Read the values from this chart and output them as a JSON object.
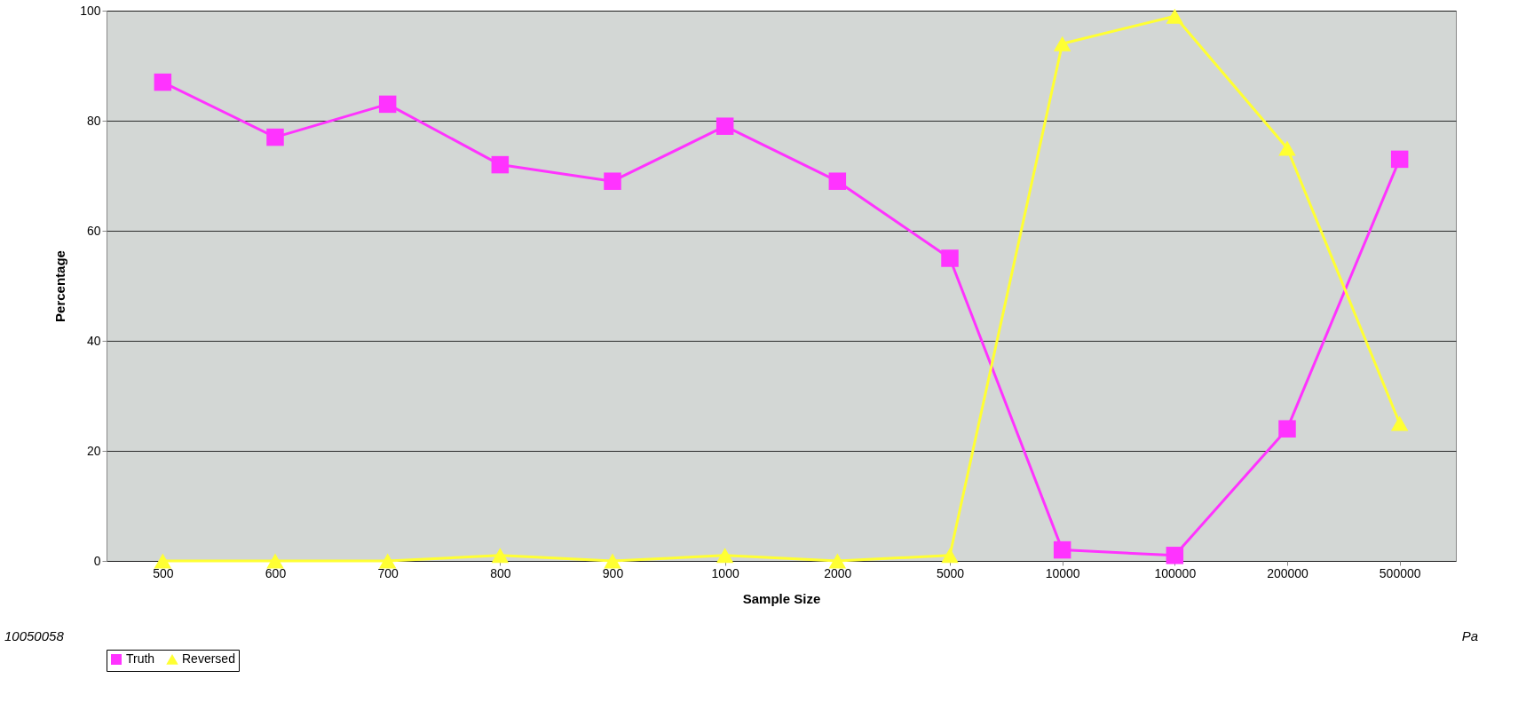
{
  "chart_data": {
    "type": "line",
    "xlabel": "Sample Size",
    "ylabel": "Percentage",
    "categories": [
      "500",
      "600",
      "700",
      "800",
      "900",
      "1000",
      "2000",
      "5000",
      "10000",
      "100000",
      "200000",
      "500000"
    ],
    "series": [
      {
        "name": "Truth",
        "color": "#ff33ff",
        "marker": "square",
        "values": [
          87,
          77,
          83,
          72,
          69,
          79,
          69,
          55,
          2,
          1,
          24,
          73
        ]
      },
      {
        "name": "Reversed",
        "color": "#ffff33",
        "marker": "triangle",
        "values": [
          0,
          0,
          0,
          1,
          0,
          1,
          0,
          1,
          94,
          99,
          75,
          25
        ]
      }
    ],
    "ylim": [
      0,
      100
    ],
    "yticks": [
      0,
      20,
      40,
      60,
      80,
      100
    ],
    "grid": "y",
    "legend": "bottom",
    "annotations": [
      "10050058",
      "Pa"
    ]
  }
}
